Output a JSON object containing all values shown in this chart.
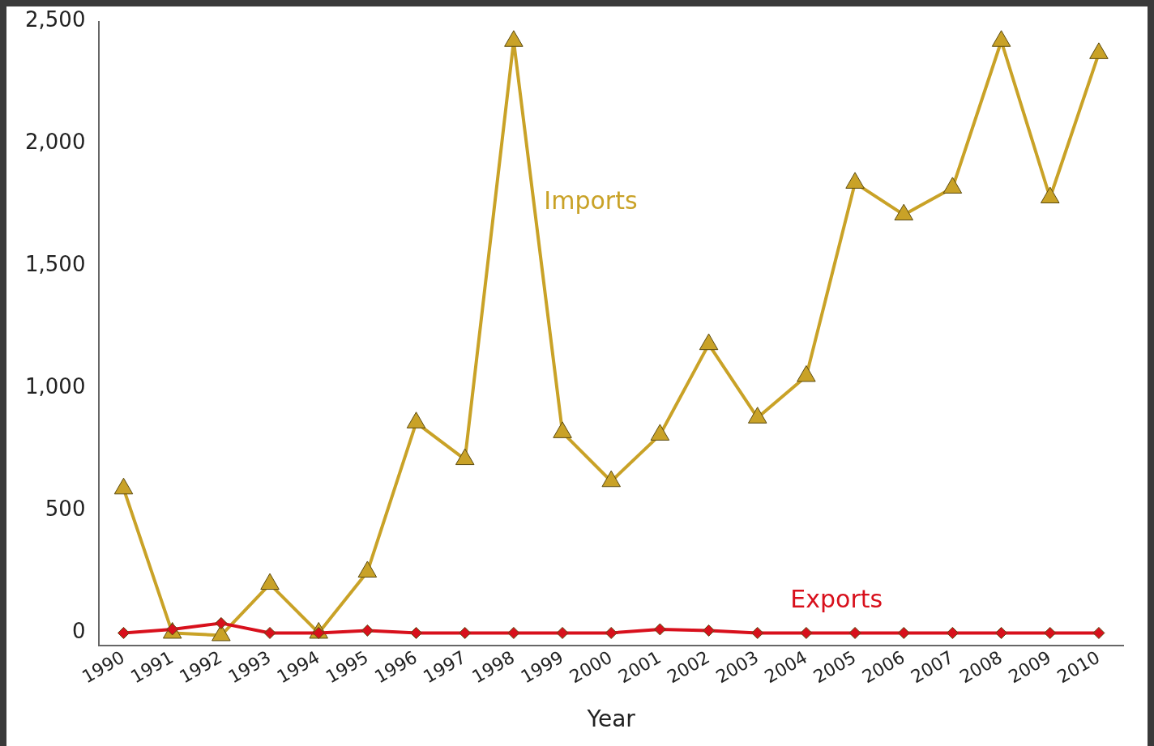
{
  "chart_data": {
    "type": "line",
    "xlabel": "Year",
    "categories": [
      "1990",
      "1991",
      "1992",
      "1993",
      "1994",
      "1995",
      "1996",
      "1997",
      "1998",
      "1999",
      "2000",
      "2001",
      "2002",
      "2003",
      "2004",
      "2005",
      "2006",
      "2007",
      "2008",
      "2009",
      "2010"
    ],
    "series": [
      {
        "name": "Imports",
        "color": "#c9a227",
        "marker": "triangle",
        "values": [
          590,
          0,
          -10,
          200,
          0,
          250,
          860,
          710,
          2420,
          820,
          620,
          810,
          1180,
          880,
          1050,
          1840,
          1710,
          1820,
          2420,
          1780,
          2370
        ]
      },
      {
        "name": "Exports",
        "color": "#d8101c",
        "marker": "diamond",
        "values": [
          0,
          15,
          40,
          0,
          0,
          10,
          0,
          0,
          0,
          0,
          0,
          15,
          10,
          0,
          0,
          0,
          0,
          0,
          0,
          0,
          0
        ]
      }
    ],
    "ylim": [
      -50,
      2500
    ],
    "yticks": [
      {
        "value": 0,
        "label": "0"
      },
      {
        "value": 500,
        "label": "500"
      },
      {
        "value": 1000,
        "label": "1,000"
      },
      {
        "value": 1500,
        "label": "1,500"
      },
      {
        "value": 2000,
        "label": "2,000"
      },
      {
        "value": 2500,
        "label": "2,500"
      }
    ],
    "grid": false,
    "legend": false,
    "line_style": "solid"
  }
}
